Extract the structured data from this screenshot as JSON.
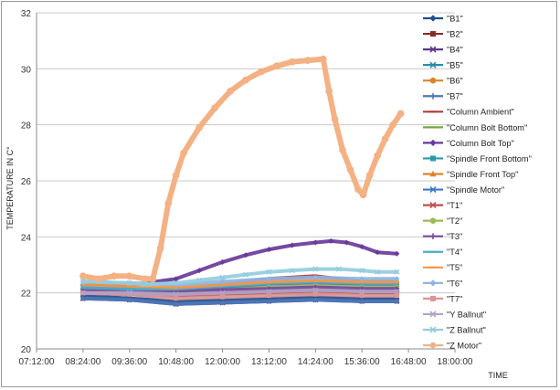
{
  "chart_data": {
    "type": "line",
    "title": "",
    "xlabel": "TIME",
    "ylabel": "TEMPERATURE IN C°",
    "xlim": [
      "07:12:00",
      "18:00:00"
    ],
    "ylim": [
      20,
      32
    ],
    "x_ticks": [
      "07:12:00",
      "08:24:00",
      "09:36:00",
      "10:48:00",
      "12:00:00",
      "13:12:00",
      "14:24:00",
      "15:36:00",
      "16:48:00",
      "18:00:00"
    ],
    "y_ticks": [
      "20",
      "22",
      "24",
      "26",
      "28",
      "30",
      "32"
    ],
    "grid": "horizontal",
    "legend_position": "right",
    "series": [
      {
        "name": "\"B1\"",
        "color": "#1f4e8c",
        "marker": "diamond",
        "x": [
          "08:24:00",
          "09:36:00",
          "10:48:00",
          "12:00:00",
          "13:12:00",
          "14:24:00",
          "15:36:00",
          "16:30:00"
        ],
        "values": [
          21.9,
          21.8,
          21.7,
          21.75,
          21.8,
          21.85,
          21.8,
          21.8
        ]
      },
      {
        "name": "\"B2\"",
        "color": "#8b2a2a",
        "marker": "square",
        "x": [
          "08:24:00",
          "09:36:00",
          "10:48:00",
          "12:00:00",
          "13:12:00",
          "14:24:00",
          "15:36:00",
          "16:30:00"
        ],
        "values": [
          22.0,
          21.95,
          21.9,
          21.95,
          22.0,
          22.05,
          22.0,
          22.0
        ]
      },
      {
        "name": "\"B4\"",
        "color": "#5b3a8c",
        "marker": "x",
        "x": [
          "08:24:00",
          "09:36:00",
          "10:48:00",
          "12:00:00",
          "13:12:00",
          "14:24:00",
          "15:36:00",
          "16:30:00"
        ],
        "values": [
          21.8,
          21.75,
          21.6,
          21.65,
          21.7,
          21.75,
          21.7,
          21.7
        ]
      },
      {
        "name": "\"B5\"",
        "color": "#2a8ca8",
        "marker": "x",
        "x": [
          "08:24:00",
          "09:36:00",
          "10:48:00",
          "12:00:00",
          "13:12:00",
          "14:24:00",
          "15:36:00",
          "16:30:00"
        ],
        "values": [
          22.1,
          22.0,
          22.0,
          22.05,
          22.1,
          22.15,
          22.1,
          22.1
        ]
      },
      {
        "name": "\"B6\"",
        "color": "#d8862a",
        "marker": "circle",
        "x": [
          "08:24:00",
          "09:36:00",
          "10:48:00",
          "12:00:00",
          "13:12:00",
          "14:24:00",
          "15:36:00",
          "16:30:00"
        ],
        "values": [
          22.0,
          21.95,
          21.95,
          22.0,
          22.05,
          22.1,
          22.05,
          22.05
        ]
      },
      {
        "name": "\"B7\"",
        "color": "#4a7ab8",
        "marker": "plus",
        "x": [
          "08:24:00",
          "09:36:00",
          "10:48:00",
          "12:00:00",
          "13:12:00",
          "14:24:00",
          "15:36:00",
          "16:30:00"
        ],
        "values": [
          21.8,
          21.75,
          21.6,
          21.65,
          21.7,
          21.75,
          21.7,
          21.7
        ]
      },
      {
        "name": "\"Column Ambient\"",
        "color": "#b03a3a",
        "marker": "dash",
        "x": [
          "08:24:00",
          "09:36:00",
          "10:48:00",
          "12:00:00",
          "13:12:00",
          "14:24:00",
          "15:36:00",
          "16:30:00"
        ],
        "values": [
          22.2,
          22.15,
          22.1,
          22.3,
          22.5,
          22.6,
          22.4,
          22.4
        ]
      },
      {
        "name": "\"Column Bolt Bottom\"",
        "color": "#7aa83a",
        "marker": "dash",
        "x": [
          "08:24:00",
          "09:36:00",
          "10:48:00",
          "12:00:00",
          "13:12:00",
          "14:24:00",
          "15:36:00",
          "16:30:00"
        ],
        "values": [
          22.1,
          22.05,
          22.0,
          22.15,
          22.3,
          22.4,
          22.3,
          22.3
        ]
      },
      {
        "name": "\"Column Bolt Top\"",
        "color": "#6a3a9a",
        "marker": "diamond",
        "x": [
          "08:24:00",
          "09:36:00",
          "10:00:00",
          "10:48:00",
          "11:24:00",
          "12:00:00",
          "12:36:00",
          "13:12:00",
          "13:48:00",
          "14:24:00",
          "14:48:00",
          "15:12:00",
          "15:36:00",
          "16:00:00",
          "16:30:00"
        ],
        "values": [
          22.3,
          22.25,
          22.35,
          22.5,
          22.8,
          23.1,
          23.35,
          23.55,
          23.7,
          23.8,
          23.85,
          23.8,
          23.65,
          23.45,
          23.4
        ]
      },
      {
        "name": "\"Spindle Front Bottom\"",
        "color": "#2a9aaa",
        "marker": "square",
        "x": [
          "08:24:00",
          "09:36:00",
          "10:48:00",
          "12:00:00",
          "13:12:00",
          "14:24:00",
          "15:36:00",
          "16:30:00"
        ],
        "values": [
          22.1,
          22.05,
          22.0,
          22.05,
          22.1,
          22.15,
          22.1,
          22.1
        ]
      },
      {
        "name": "\"Spindle Front Top\"",
        "color": "#e0822a",
        "marker": "triangle",
        "x": [
          "08:24:00",
          "09:36:00",
          "10:48:00",
          "12:00:00",
          "13:12:00",
          "14:24:00",
          "15:36:00",
          "16:30:00"
        ],
        "values": [
          22.2,
          22.15,
          22.15,
          22.25,
          22.35,
          22.4,
          22.35,
          22.35
        ]
      },
      {
        "name": "\"Spindle Motor\"",
        "color": "#3a7ac8",
        "marker": "x",
        "x": [
          "08:24:00",
          "09:36:00",
          "10:48:00",
          "12:00:00",
          "13:12:00",
          "14:24:00",
          "15:36:00",
          "16:30:00"
        ],
        "values": [
          22.2,
          22.15,
          22.1,
          22.2,
          22.3,
          22.35,
          22.3,
          22.3
        ]
      },
      {
        "name": "\"T1\"",
        "color": "#c0504d",
        "marker": "x",
        "x": [
          "08:24:00",
          "09:36:00",
          "10:48:00",
          "12:00:00",
          "13:12:00",
          "14:24:00",
          "15:36:00",
          "16:30:00"
        ],
        "values": [
          22.0,
          21.95,
          21.9,
          21.95,
          22.0,
          22.0,
          22.0,
          22.0
        ]
      },
      {
        "name": "\"T2\"",
        "color": "#9bbb59",
        "marker": "circle",
        "x": [
          "08:24:00",
          "09:36:00",
          "10:48:00",
          "12:00:00",
          "13:12:00",
          "14:24:00",
          "15:36:00",
          "16:30:00"
        ],
        "values": [
          22.1,
          22.05,
          22.0,
          22.1,
          22.2,
          22.25,
          22.2,
          22.2
        ]
      },
      {
        "name": "\"T3\"",
        "color": "#7a4aa0",
        "marker": "plus",
        "x": [
          "08:24:00",
          "09:36:00",
          "10:48:00",
          "12:00:00",
          "13:12:00",
          "14:24:00",
          "15:36:00",
          "16:30:00"
        ],
        "values": [
          22.1,
          22.05,
          22.05,
          22.1,
          22.15,
          22.2,
          22.15,
          22.15
        ]
      },
      {
        "name": "\"T4\"",
        "color": "#4bacc6",
        "marker": "dash",
        "x": [
          "08:24:00",
          "09:36:00",
          "10:48:00",
          "12:00:00",
          "13:12:00",
          "14:24:00",
          "15:36:00",
          "16:30:00"
        ],
        "values": [
          22.2,
          22.15,
          22.15,
          22.25,
          22.35,
          22.4,
          22.35,
          22.35
        ]
      },
      {
        "name": "\"T5\"",
        "color": "#f79646",
        "marker": "dash",
        "x": [
          "08:24:00",
          "09:36:00",
          "10:48:00",
          "12:00:00",
          "13:12:00",
          "14:24:00",
          "15:36:00",
          "16:30:00"
        ],
        "values": [
          22.3,
          22.25,
          22.2,
          22.3,
          22.4,
          22.45,
          22.4,
          22.4
        ]
      },
      {
        "name": "\"T6\"",
        "color": "#8eb4e3",
        "marker": "diamond",
        "x": [
          "08:24:00",
          "09:36:00",
          "10:48:00",
          "12:00:00",
          "13:12:00",
          "14:24:00",
          "15:36:00",
          "16:30:00"
        ],
        "values": [
          22.4,
          22.35,
          22.3,
          22.4,
          22.5,
          22.55,
          22.5,
          22.5
        ]
      },
      {
        "name": "\"T7\"",
        "color": "#d99694",
        "marker": "square",
        "x": [
          "08:24:00",
          "09:36:00",
          "10:48:00",
          "12:00:00",
          "13:12:00",
          "14:24:00",
          "15:36:00",
          "16:30:00"
        ],
        "values": [
          22.0,
          21.95,
          21.8,
          21.85,
          21.9,
          21.95,
          21.9,
          21.9
        ]
      },
      {
        "name": "\"Y Ballnut\"",
        "color": "#b3a2c7",
        "marker": "x",
        "x": [
          "08:24:00",
          "09:36:00",
          "10:48:00",
          "12:00:00",
          "13:12:00",
          "14:24:00",
          "15:36:00",
          "16:30:00"
        ],
        "values": [
          22.0,
          22.0,
          21.95,
          22.0,
          22.05,
          22.1,
          22.05,
          22.05
        ]
      },
      {
        "name": "\"Z Ballnut\"",
        "color": "#93cddd",
        "marker": "x",
        "x": [
          "08:24:00",
          "09:36:00",
          "10:00:00",
          "10:48:00",
          "11:24:00",
          "12:00:00",
          "12:36:00",
          "13:12:00",
          "13:48:00",
          "14:24:00",
          "15:00:00",
          "15:36:00",
          "16:00:00",
          "16:30:00"
        ],
        "values": [
          22.4,
          22.35,
          22.3,
          22.35,
          22.45,
          22.55,
          22.65,
          22.75,
          22.8,
          22.85,
          22.85,
          22.8,
          22.75,
          22.75
        ]
      },
      {
        "name": "\"Z Motor\"",
        "color": "#f4b183",
        "marker": "circle",
        "x": [
          "08:24:00",
          "08:48:00",
          "09:12:00",
          "09:36:00",
          "10:00:00",
          "10:12:00",
          "10:24:00",
          "10:36:00",
          "10:48:00",
          "11:00:00",
          "11:24:00",
          "11:48:00",
          "12:12:00",
          "12:36:00",
          "13:00:00",
          "13:24:00",
          "13:48:00",
          "14:12:00",
          "14:36:00",
          "14:45:00",
          "14:54:00",
          "15:06:00",
          "15:18:00",
          "15:30:00",
          "15:38:00",
          "15:48:00",
          "16:00:00",
          "16:12:00",
          "16:24:00",
          "16:36:00"
        ],
        "values": [
          22.6,
          22.5,
          22.6,
          22.6,
          22.5,
          22.5,
          23.6,
          25.2,
          26.2,
          27.0,
          27.9,
          28.6,
          29.2,
          29.6,
          29.9,
          30.1,
          30.25,
          30.3,
          30.35,
          29.2,
          28.2,
          27.1,
          26.4,
          25.7,
          25.5,
          26.2,
          26.9,
          27.5,
          28.0,
          28.4
        ]
      }
    ]
  }
}
